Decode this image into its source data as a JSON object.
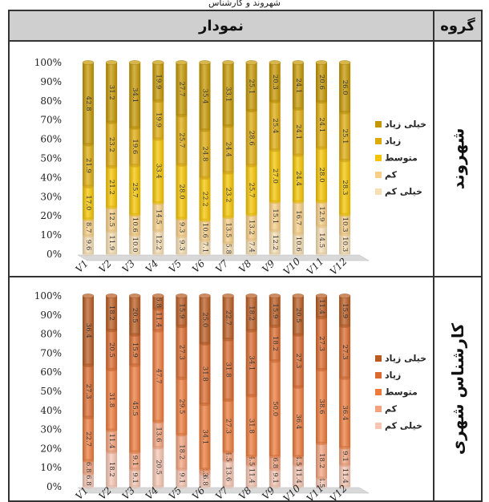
{
  "caption": "ﺷﻬﺮوﻧﺪ و ﮐﺎرﺷﻨﺎس",
  "table": {
    "header_group": "گروه",
    "header_chart": "نمودار",
    "rows": [
      {
        "group_label": "شهروند"
      },
      {
        "group_label": "کارشناس شهری"
      }
    ]
  },
  "chart_data": [
    {
      "type": "bar",
      "stacked": true,
      "percent": true,
      "categories": [
        "V1",
        "V2",
        "V3",
        "V4",
        "V5",
        "V6",
        "V7",
        "V8",
        "V9",
        "V10",
        "V11",
        "V12"
      ],
      "yticks": [
        "0%",
        "10%",
        "20%",
        "30%",
        "40%",
        "50%",
        "60%",
        "70%",
        "80%",
        "90%",
        "100%"
      ],
      "legend_position": "right",
      "grid": false,
      "series": [
        {
          "name": "خیلی کم",
          "color": "#f6dfb4",
          "values": [
            9.6,
            11.9,
            10.0,
            12.2,
            9.3,
            7.1,
            5.8,
            7.4,
            12.2,
            10.6,
            14.5,
            10.3
          ]
        },
        {
          "name": "کم",
          "color": "#f7cf86",
          "values": [
            8.7,
            12.5,
            10.6,
            14.5,
            9.3,
            10.6,
            13.5,
            13.2,
            15.1,
            16.7,
            12.9,
            10.3
          ]
        },
        {
          "name": "متوسط",
          "color": "#f5c400",
          "values": [
            17.0,
            21.2,
            25.7,
            33.4,
            28.0,
            22.2,
            23.2,
            25.7,
            27.0,
            24.4,
            28.0,
            28.3
          ]
        },
        {
          "name": "زیاد",
          "color": "#deaa0b",
          "values": [
            21.9,
            23.2,
            19.6,
            19.9,
            25.7,
            24.8,
            24.4,
            28.6,
            25.4,
            24.1,
            24.1,
            25.1
          ]
        },
        {
          "name": "خیلی زیاد",
          "color": "#c49600",
          "values": [
            42.8,
            31.2,
            34.1,
            19.9,
            27.7,
            35.4,
            33.1,
            25.1,
            20.3,
            24.1,
            20.6,
            26.0
          ]
        }
      ]
    },
    {
      "type": "bar",
      "stacked": true,
      "percent": true,
      "categories": [
        "V1",
        "V2",
        "V3",
        "V4",
        "V5",
        "V6",
        "V7",
        "V8",
        "V9",
        "V10",
        "V11",
        "V12"
      ],
      "yticks": [
        "0%",
        "10%",
        "20%",
        "30%",
        "40%",
        "50%",
        "60%",
        "70%",
        "80%",
        "90%",
        "100%"
      ],
      "legend_position": "right",
      "grid": false,
      "series": [
        {
          "name": "خیلی کم",
          "color": "#f6c6b2",
          "values": [
            6.8,
            18.2,
            9.1,
            20.5,
            9.1,
            6.8,
            13.6,
            11.4,
            9.1,
            11.4,
            4.5,
            11.4
          ]
        },
        {
          "name": "کم",
          "color": "#f3a27d",
          "values": [
            6.8,
            11.4,
            9.1,
            13.6,
            18.2,
            2.3,
            4.5,
            4.5,
            6.8,
            4.5,
            18.2,
            9.1
          ]
        },
        {
          "name": "متوسط",
          "color": "#ec7a3a",
          "values": [
            22.7,
            31.8,
            45.5,
            47.7,
            29.5,
            34.1,
            27.3,
            31.8,
            50.0,
            36.4,
            38.6,
            36.4
          ]
        },
        {
          "name": "زیاد",
          "color": "#d9692c",
          "values": [
            27.3,
            20.5,
            15.9,
            11.4,
            27.3,
            31.8,
            31.8,
            34.1,
            18.2,
            27.3,
            27.3,
            27.3
          ]
        },
        {
          "name": "خیلی زیاد",
          "color": "#b95a1f",
          "values": [
            36.4,
            18.2,
            20.5,
            6.8,
            15.9,
            25.0,
            22.7,
            18.2,
            15.9,
            20.5,
            11.4,
            15.9
          ]
        }
      ]
    }
  ]
}
